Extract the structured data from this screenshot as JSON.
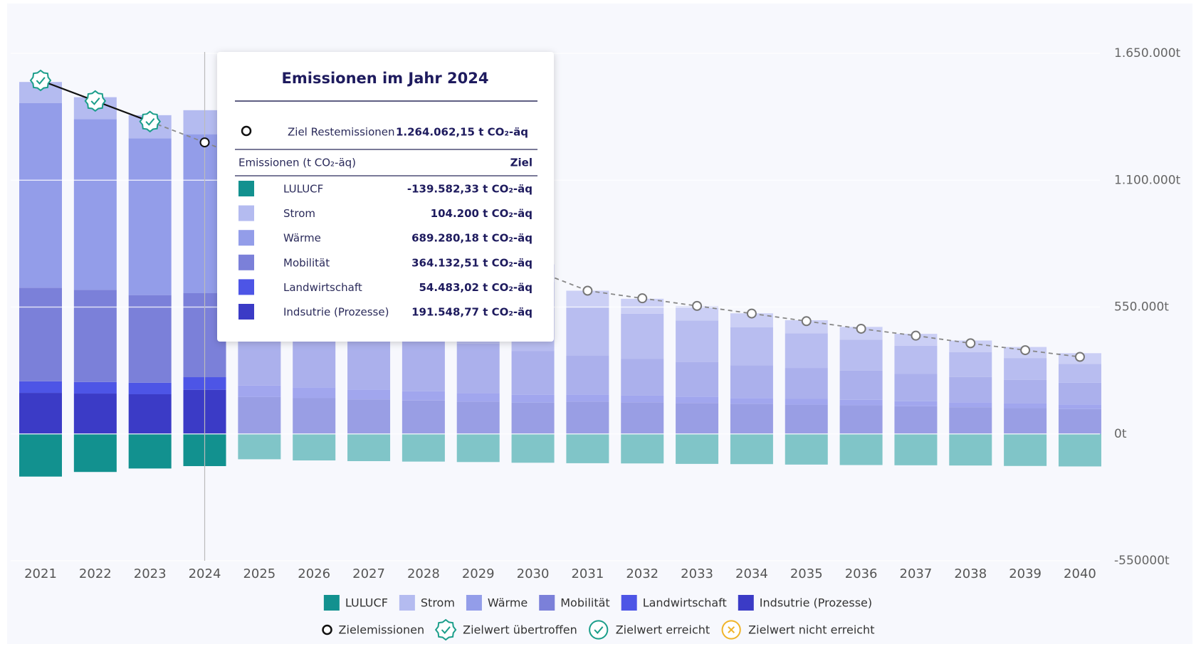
{
  "chart_data": {
    "type": "stacked_bar",
    "categories": [
      "2021",
      "2022",
      "2023",
      "2024",
      "2025",
      "2026",
      "2027",
      "2028",
      "2029",
      "2030",
      "2031",
      "2032",
      "2033",
      "2034",
      "2035",
      "2036",
      "2037",
      "2038",
      "2039",
      "2040"
    ],
    "actual_until": "2024",
    "series": [
      {
        "name": "LULUCF",
        "color": "#12918f",
        "projected_color": "#80c5c8",
        "values": [
          -185000,
          -165000,
          -150000,
          -139582.33,
          -110000,
          -115000,
          -118000,
          -120000,
          -122000,
          -125000,
          -127000,
          -128000,
          -130000,
          -131000,
          -133000,
          -135000,
          -136000,
          -137000,
          -139000,
          -141000
        ]
      },
      {
        "name": "Strom",
        "color": "#b4bbf0",
        "projected_color": "#cbcff5",
        "values": [
          92000,
          95000,
          100000,
          104200,
          100000,
          95000,
          90000,
          85000,
          80000,
          75000,
          70000,
          65000,
          62000,
          60000,
          57000,
          55000,
          52000,
          50000,
          48000,
          46000
        ]
      },
      {
        "name": "Wärme",
        "color": "#939de9",
        "projected_color": "#b8bdf0",
        "values": [
          800000,
          740000,
          680000,
          689280.18,
          600000,
          540000,
          480000,
          420000,
          360000,
          300000,
          210000,
          195000,
          180000,
          165000,
          150000,
          135000,
          122000,
          108000,
          95000,
          82000
        ]
      },
      {
        "name": "Mobilität",
        "color": "#7b80d9",
        "projected_color": "#abb0ec",
        "values": [
          406000,
          400000,
          380000,
          364132.51,
          320000,
          290000,
          265000,
          240000,
          215000,
          190000,
          170000,
          160000,
          150000,
          142000,
          134000,
          126000,
          118000,
          110000,
          102000,
          95000
        ]
      },
      {
        "name": "Landwirtschaft",
        "color": "#4d55e6",
        "projected_color": "#a1a6ee",
        "values": [
          50000,
          50000,
          50000,
          54483.02,
          50000,
          46000,
          43000,
          40000,
          37000,
          34000,
          31000,
          29000,
          28000,
          26000,
          25000,
          24000,
          22000,
          21000,
          20000,
          19000
        ]
      },
      {
        "name": "Indsutrie (Prozesse)",
        "color": "#3b3bc6",
        "projected_color": "#999ee4",
        "values": [
          178000,
          175000,
          172000,
          191548.77,
          160000,
          155000,
          150000,
          145000,
          140000,
          136000,
          140000,
          137000,
          134000,
          130000,
          127000,
          124000,
          120000,
          116000,
          112000,
          108000
        ]
      }
    ],
    "target": {
      "name": "Zielemissionen",
      "values": [
        1532700,
        1443600,
        1354400,
        1264062.15,
        1172000,
        1080000,
        988000,
        897000,
        805000,
        713000,
        621000,
        588000,
        555000,
        522000,
        489000,
        456000,
        426000,
        393000,
        363000,
        334000
      ],
      "status": [
        "Zielwert übertroffen",
        "Zielwert übertroffen",
        "Zielwert übertroffen",
        null,
        null,
        null,
        null,
        null,
        null,
        null,
        null,
        null,
        null,
        null,
        null,
        null,
        null,
        null,
        null,
        null
      ]
    },
    "status_legend": [
      "Zielwert übertroffen",
      "Zielwert erreicht",
      "Zielwert nicht erreicht"
    ],
    "ylim": [
      -550000,
      1650000
    ],
    "yticks": [
      {
        "value": -550000,
        "label": "-550000t"
      },
      {
        "value": 0,
        "label": "0t"
      },
      {
        "value": 550000,
        "label": "550.000t"
      },
      {
        "value": 1100000,
        "label": "1.100.000t"
      },
      {
        "value": 1650000,
        "label": "1.650.000t"
      }
    ],
    "grid": true,
    "tooltip": {
      "title": "Emissionen im Jahr 2024",
      "target_name": "Ziel Restemissionen",
      "target_value_label": "1.264.062,15 t CO₂-äq",
      "header": [
        "Emissionen (t CO₂-äq)",
        "Ziel"
      ],
      "value_labels": [
        "-139.582,33 t CO₂-äq",
        "104.200 t CO₂-äq",
        "689.280,18 t CO₂-äq",
        "364.132,51 t CO₂-äq",
        "54.483,02 t CO₂-äq",
        "191.548,77 t CO₂-äq"
      ]
    }
  }
}
